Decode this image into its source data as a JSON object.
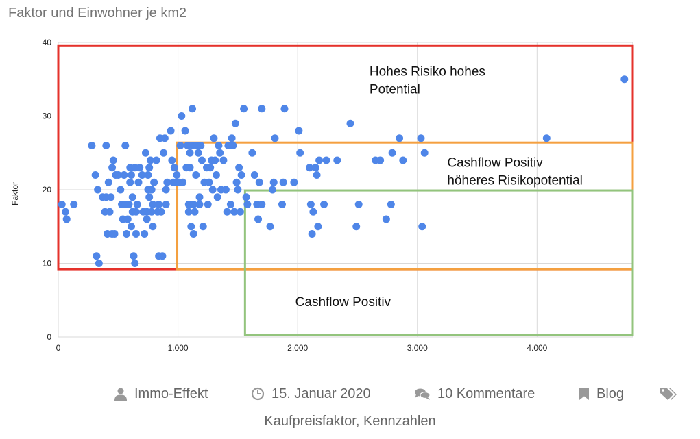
{
  "chart_data": {
    "type": "scatter",
    "title": "Faktor und Einwohner je km2",
    "xlabel": "",
    "ylabel": "Faktor",
    "xlim": [
      0,
      4800
    ],
    "ylim": [
      0,
      40
    ],
    "x_ticks": [
      0,
      1000,
      2000,
      3000,
      4000
    ],
    "x_tick_labels": [
      "0",
      "1.000",
      "2.000",
      "3.000",
      "4.000"
    ],
    "y_ticks": [
      0,
      10,
      20,
      30,
      40
    ],
    "y_tick_labels": [
      "0",
      "10",
      "20",
      "30",
      "40"
    ],
    "grid": true,
    "point_color": "#4f86e8",
    "regions": [
      {
        "label_lines": [
          "Hohes Risiko hohes",
          "Potential"
        ],
        "color": "#e5322b",
        "x0": 0,
        "x1": 4800,
        "y0": 9.2,
        "y1": 39.6,
        "label_x": 2600,
        "label_y": 35.5
      },
      {
        "label_lines": [
          "Cashflow Positiv",
          "höheres Risikopotential"
        ],
        "color": "#f4a040",
        "x0": 990,
        "x1": 4800,
        "y0": 9.2,
        "y1": 26.4,
        "label_x": 3250,
        "label_y": 23.1
      },
      {
        "label_lines": [
          "Cashflow Positiv"
        ],
        "color": "#93c47d",
        "x0": 1560,
        "x1": 4800,
        "y0": 0.3,
        "y1": 19.9,
        "label_x": 1980,
        "label_y": 4.2
      }
    ],
    "points": [
      [
        30,
        18
      ],
      [
        60,
        17
      ],
      [
        70,
        16
      ],
      [
        130,
        18
      ],
      [
        280,
        26
      ],
      [
        310,
        22
      ],
      [
        320,
        11
      ],
      [
        330,
        20
      ],
      [
        340,
        10
      ],
      [
        370,
        19
      ],
      [
        390,
        17
      ],
      [
        400,
        19
      ],
      [
        400,
        26
      ],
      [
        410,
        14
      ],
      [
        420,
        21
      ],
      [
        430,
        17
      ],
      [
        440,
        19
      ],
      [
        450,
        14
      ],
      [
        450,
        23
      ],
      [
        460,
        24
      ],
      [
        470,
        14
      ],
      [
        480,
        22
      ],
      [
        500,
        22
      ],
      [
        520,
        20
      ],
      [
        530,
        18
      ],
      [
        540,
        16
      ],
      [
        550,
        22
      ],
      [
        560,
        18
      ],
      [
        560,
        26
      ],
      [
        570,
        14
      ],
      [
        580,
        16
      ],
      [
        590,
        18
      ],
      [
        600,
        21
      ],
      [
        600,
        23
      ],
      [
        610,
        15
      ],
      [
        610,
        22
      ],
      [
        620,
        19
      ],
      [
        620,
        17
      ],
      [
        630,
        11
      ],
      [
        640,
        10
      ],
      [
        640,
        23
      ],
      [
        650,
        17
      ],
      [
        650,
        14
      ],
      [
        660,
        18
      ],
      [
        670,
        21
      ],
      [
        680,
        23
      ],
      [
        700,
        22
      ],
      [
        710,
        17
      ],
      [
        720,
        14
      ],
      [
        730,
        25
      ],
      [
        740,
        16
      ],
      [
        740,
        17
      ],
      [
        750,
        20
      ],
      [
        750,
        22
      ],
      [
        760,
        23
      ],
      [
        760,
        19
      ],
      [
        770,
        24
      ],
      [
        780,
        17
      ],
      [
        780,
        20
      ],
      [
        790,
        18
      ],
      [
        790,
        15
      ],
      [
        800,
        21
      ],
      [
        820,
        24
      ],
      [
        830,
        17
      ],
      [
        840,
        18
      ],
      [
        840,
        11
      ],
      [
        850,
        27
      ],
      [
        860,
        17
      ],
      [
        870,
        11
      ],
      [
        880,
        25
      ],
      [
        890,
        27
      ],
      [
        900,
        18
      ],
      [
        900,
        20
      ],
      [
        910,
        21
      ],
      [
        940,
        28
      ],
      [
        950,
        24
      ],
      [
        960,
        21
      ],
      [
        970,
        23
      ],
      [
        980,
        21
      ],
      [
        990,
        22
      ],
      [
        1010,
        21
      ],
      [
        1020,
        26
      ],
      [
        1030,
        30
      ],
      [
        1040,
        21
      ],
      [
        1060,
        28
      ],
      [
        1070,
        23
      ],
      [
        1080,
        26
      ],
      [
        1090,
        17
      ],
      [
        1090,
        18
      ],
      [
        1100,
        25
      ],
      [
        1100,
        23
      ],
      [
        1110,
        15
      ],
      [
        1120,
        31
      ],
      [
        1120,
        26
      ],
      [
        1130,
        14
      ],
      [
        1130,
        18
      ],
      [
        1140,
        17
      ],
      [
        1150,
        22
      ],
      [
        1160,
        26
      ],
      [
        1170,
        25
      ],
      [
        1180,
        19
      ],
      [
        1180,
        18
      ],
      [
        1190,
        26
      ],
      [
        1200,
        24
      ],
      [
        1210,
        15
      ],
      [
        1220,
        21
      ],
      [
        1240,
        23
      ],
      [
        1250,
        18
      ],
      [
        1260,
        21
      ],
      [
        1270,
        23
      ],
      [
        1280,
        24
      ],
      [
        1290,
        20
      ],
      [
        1300,
        27
      ],
      [
        1310,
        24
      ],
      [
        1320,
        22
      ],
      [
        1330,
        19
      ],
      [
        1340,
        26
      ],
      [
        1350,
        25
      ],
      [
        1360,
        20
      ],
      [
        1380,
        24
      ],
      [
        1400,
        20
      ],
      [
        1410,
        17
      ],
      [
        1420,
        26
      ],
      [
        1430,
        26
      ],
      [
        1440,
        18
      ],
      [
        1450,
        27
      ],
      [
        1460,
        26
      ],
      [
        1470,
        17
      ],
      [
        1480,
        29
      ],
      [
        1490,
        21
      ],
      [
        1500,
        20
      ],
      [
        1510,
        23
      ],
      [
        1520,
        17
      ],
      [
        1530,
        22
      ],
      [
        1550,
        31
      ],
      [
        1570,
        19
      ],
      [
        1580,
        18
      ],
      [
        1620,
        25
      ],
      [
        1640,
        22
      ],
      [
        1660,
        18
      ],
      [
        1670,
        16
      ],
      [
        1680,
        21
      ],
      [
        1700,
        31
      ],
      [
        1700,
        18
      ],
      [
        1770,
        15
      ],
      [
        1790,
        20
      ],
      [
        1800,
        21
      ],
      [
        1810,
        27
      ],
      [
        1870,
        18
      ],
      [
        1880,
        21
      ],
      [
        1890,
        31
      ],
      [
        1970,
        21
      ],
      [
        2010,
        28
      ],
      [
        2020,
        25
      ],
      [
        2100,
        23
      ],
      [
        2110,
        18
      ],
      [
        2120,
        14
      ],
      [
        2130,
        17
      ],
      [
        2150,
        23
      ],
      [
        2160,
        22
      ],
      [
        2170,
        15
      ],
      [
        2180,
        24
      ],
      [
        2220,
        18
      ],
      [
        2240,
        24
      ],
      [
        2330,
        24
      ],
      [
        2440,
        29
      ],
      [
        2490,
        15
      ],
      [
        2510,
        18
      ],
      [
        2650,
        24
      ],
      [
        2690,
        24
      ],
      [
        2740,
        16
      ],
      [
        2780,
        18
      ],
      [
        2790,
        25
      ],
      [
        2850,
        27
      ],
      [
        2880,
        24
      ],
      [
        3030,
        27
      ],
      [
        3040,
        15
      ],
      [
        3060,
        25
      ],
      [
        4080,
        27
      ],
      [
        4730,
        35
      ]
    ]
  },
  "meta": {
    "author": "Immo-Effekt",
    "date": "15. Januar 2020",
    "comments": "10 Kommentare",
    "category": "Blog",
    "tags": [
      "Kaufpreisfaktor",
      "Kennzahlen"
    ],
    "tag_separator": ", ",
    "colors": {
      "meta_text": "#666666",
      "meta_icon": "#999999"
    },
    "icons": [
      "user-icon",
      "clock-icon",
      "comments-icon",
      "bookmark-icon",
      "tags-icon"
    ]
  }
}
